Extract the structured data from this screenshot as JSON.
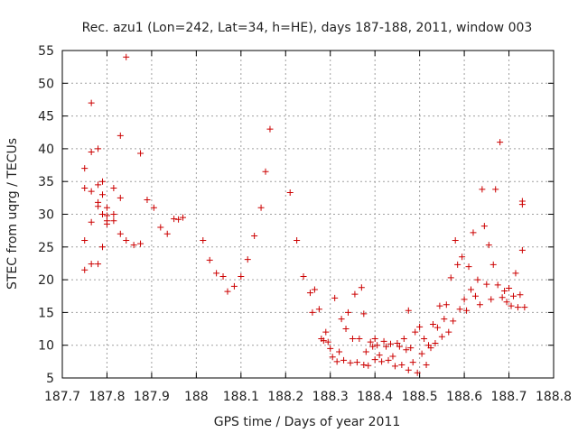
{
  "chart_data": {
    "type": "scatter",
    "title": "Rec. azu1 (Lon=242, Lat=34, h=HE), days 187-188, 2011, window 003",
    "xlabel": "GPS time / Days of year 2011",
    "ylabel": "STEC from uqrg / TECUs",
    "xlim": [
      187.7,
      188.8
    ],
    "ylim": [
      5,
      55
    ],
    "x_ticks": [
      187.7,
      187.8,
      187.9,
      188.0,
      188.1,
      188.2,
      188.3,
      188.4,
      188.5,
      188.6,
      188.7,
      188.8
    ],
    "x_tick_labels": [
      "187.7",
      "187.8",
      "187.9",
      "188",
      "188.1",
      "188.2",
      "188.3",
      "188.4",
      "188.5",
      "188.6",
      "188.7",
      "188.8"
    ],
    "y_ticks": [
      5,
      10,
      15,
      20,
      25,
      30,
      35,
      40,
      45,
      50,
      55
    ],
    "y_tick_labels": [
      "5",
      "10",
      "15",
      "20",
      "25",
      "30",
      "35",
      "40",
      "45",
      "50",
      "55"
    ],
    "grid": true,
    "marker": "+",
    "marker_color": "#cc0000",
    "series": [
      {
        "name": "STEC",
        "points": [
          [
            187.75,
            37
          ],
          [
            187.75,
            34
          ],
          [
            187.75,
            26
          ],
          [
            187.75,
            21.5
          ],
          [
            187.765,
            47
          ],
          [
            187.765,
            39.5
          ],
          [
            187.765,
            33.5
          ],
          [
            187.765,
            28.8
          ],
          [
            187.765,
            22.4
          ],
          [
            187.78,
            40
          ],
          [
            187.78,
            34.5
          ],
          [
            187.78,
            31.8
          ],
          [
            187.78,
            31.2
          ],
          [
            187.78,
            22.4
          ],
          [
            187.79,
            35
          ],
          [
            187.79,
            33
          ],
          [
            187.79,
            30
          ],
          [
            187.79,
            25
          ],
          [
            187.8,
            31
          ],
          [
            187.8,
            29.8
          ],
          [
            187.8,
            29
          ],
          [
            187.8,
            28.5
          ],
          [
            187.815,
            34
          ],
          [
            187.815,
            30
          ],
          [
            187.815,
            29
          ],
          [
            187.83,
            42
          ],
          [
            187.83,
            32.5
          ],
          [
            187.83,
            27
          ],
          [
            187.843,
            54
          ],
          [
            187.843,
            26
          ],
          [
            187.86,
            25.3
          ],
          [
            187.875,
            39.3
          ],
          [
            187.875,
            25.5
          ],
          [
            187.89,
            32.2
          ],
          [
            187.905,
            31
          ],
          [
            187.92,
            28
          ],
          [
            187.935,
            27
          ],
          [
            187.95,
            29.3
          ],
          [
            187.96,
            29.2
          ],
          [
            187.97,
            29.5
          ],
          [
            188.015,
            26
          ],
          [
            188.03,
            23
          ],
          [
            188.045,
            21
          ],
          [
            188.06,
            20.5
          ],
          [
            188.07,
            18.2
          ],
          [
            188.085,
            19
          ],
          [
            188.1,
            20.5
          ],
          [
            188.115,
            23.1
          ],
          [
            188.13,
            26.7
          ],
          [
            188.145,
            31
          ],
          [
            188.155,
            36.5
          ],
          [
            188.165,
            43
          ],
          [
            188.21,
            33.3
          ],
          [
            188.225,
            26
          ],
          [
            188.24,
            20.5
          ],
          [
            188.255,
            18
          ],
          [
            188.26,
            15
          ],
          [
            188.265,
            18.5
          ],
          [
            188.275,
            15.5
          ],
          [
            188.28,
            11
          ],
          [
            188.285,
            10.7
          ],
          [
            188.29,
            12
          ],
          [
            188.295,
            10.5
          ],
          [
            188.3,
            9.5
          ],
          [
            188.305,
            8.2
          ],
          [
            188.31,
            17.2
          ],
          [
            188.315,
            7.5
          ],
          [
            188.32,
            9
          ],
          [
            188.325,
            14
          ],
          [
            188.33,
            7.7
          ],
          [
            188.335,
            12.5
          ],
          [
            188.34,
            15
          ],
          [
            188.345,
            7.3
          ],
          [
            188.35,
            11
          ],
          [
            188.355,
            17.8
          ],
          [
            188.36,
            7.4
          ],
          [
            188.365,
            11
          ],
          [
            188.37,
            18.8
          ],
          [
            188.375,
            7
          ],
          [
            188.375,
            14.8
          ],
          [
            188.38,
            9
          ],
          [
            188.385,
            6.9
          ],
          [
            188.39,
            10.5
          ],
          [
            188.395,
            9.8
          ],
          [
            188.4,
            11
          ],
          [
            188.4,
            7.8
          ],
          [
            188.405,
            10
          ],
          [
            188.41,
            8.5
          ],
          [
            188.415,
            7.5
          ],
          [
            188.42,
            10.6
          ],
          [
            188.425,
            9.8
          ],
          [
            188.43,
            7.7
          ],
          [
            188.435,
            10.2
          ],
          [
            188.44,
            8.3
          ],
          [
            188.445,
            6.8
          ],
          [
            188.45,
            10.3
          ],
          [
            188.455,
            9.8
          ],
          [
            188.46,
            7
          ],
          [
            188.465,
            11
          ],
          [
            188.47,
            9.3
          ],
          [
            188.475,
            6.2
          ],
          [
            188.475,
            15.3
          ],
          [
            188.48,
            9.6
          ],
          [
            188.485,
            7.4
          ],
          [
            188.49,
            12
          ],
          [
            188.495,
            5.8
          ],
          [
            188.5,
            12.8
          ],
          [
            188.505,
            8.7
          ],
          [
            188.51,
            11
          ],
          [
            188.515,
            7
          ],
          [
            188.52,
            10
          ],
          [
            188.525,
            9.6
          ],
          [
            188.53,
            13.2
          ],
          [
            188.535,
            10.3
          ],
          [
            188.54,
            12.7
          ],
          [
            188.545,
            16
          ],
          [
            188.55,
            11.3
          ],
          [
            188.555,
            14
          ],
          [
            188.56,
            16.2
          ],
          [
            188.565,
            12
          ],
          [
            188.57,
            20.3
          ],
          [
            188.575,
            13.7
          ],
          [
            188.58,
            26
          ],
          [
            188.585,
            22.3
          ],
          [
            188.59,
            15.5
          ],
          [
            188.595,
            23.5
          ],
          [
            188.6,
            17
          ],
          [
            188.605,
            15.3
          ],
          [
            188.61,
            22
          ],
          [
            188.615,
            18.5
          ],
          [
            188.62,
            27.2
          ],
          [
            188.625,
            17.5
          ],
          [
            188.63,
            20
          ],
          [
            188.635,
            16.2
          ],
          [
            188.64,
            33.8
          ],
          [
            188.645,
            28.2
          ],
          [
            188.65,
            19.3
          ],
          [
            188.655,
            25.3
          ],
          [
            188.66,
            17
          ],
          [
            188.665,
            22.3
          ],
          [
            188.67,
            33.8
          ],
          [
            188.675,
            19.2
          ],
          [
            188.68,
            41
          ],
          [
            188.685,
            17.3
          ],
          [
            188.69,
            18.3
          ],
          [
            188.695,
            16.6
          ],
          [
            188.7,
            18.7
          ],
          [
            188.705,
            16
          ],
          [
            188.71,
            17.5
          ],
          [
            188.715,
            21
          ],
          [
            188.72,
            15.8
          ],
          [
            188.725,
            17.7
          ],
          [
            188.73,
            32
          ],
          [
            188.73,
            31.5
          ],
          [
            188.73,
            24.5
          ],
          [
            188.735,
            15.8
          ]
        ]
      }
    ]
  }
}
